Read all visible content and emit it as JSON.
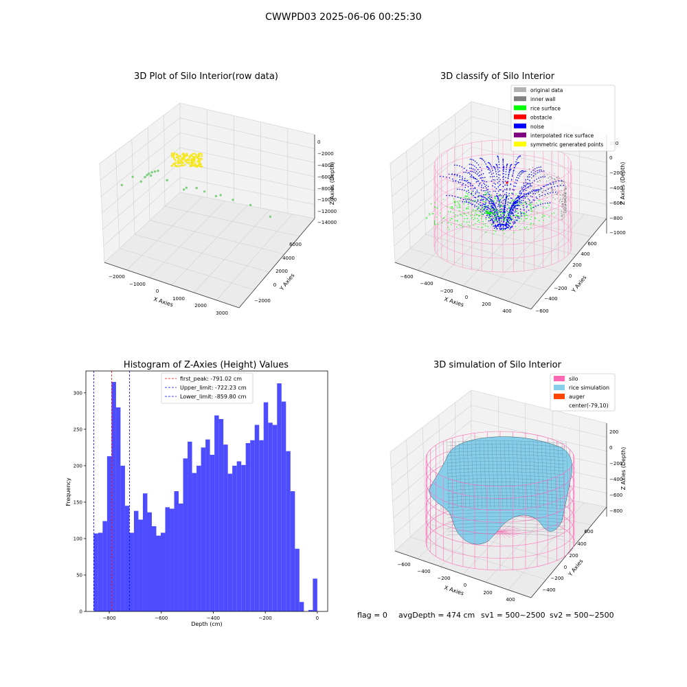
{
  "figure": {
    "suptitle": "CWWPD03 2025-06-06 00:25:30",
    "footer": {
      "flag": "flag = 0",
      "avg": "avgDepth = 474 cm",
      "sv1": "sv1 = 500~2500",
      "sv2": "sv2 = 500~2500"
    }
  },
  "chart_data": [
    {
      "type": "scatter",
      "projection": "3d",
      "title": "3D Plot of Silo Interior(row data)",
      "xlabel": "X Axies",
      "ylabel": "Y Axies",
      "zlabel": "Z Axies (Depth)",
      "xticks": [
        "−2000",
        "−1000",
        "0",
        "1000",
        "2000",
        "3000"
      ],
      "yticks": [
        "−2000",
        "0",
        "2000",
        "4000",
        "6000"
      ],
      "zticks": [
        "0",
        "−2000",
        "−4000",
        "−6000",
        "−8000",
        "−10000",
        "−12000",
        "−14000"
      ],
      "colors": {
        "cluster": "#f5e71a",
        "outliers": "#7ed07e"
      },
      "series": [
        {
          "label": "cluster",
          "x": [
            -300,
            300
          ],
          "y": [
            -300,
            300
          ],
          "z": [
            -900,
            0
          ]
        },
        {
          "label": "outliers",
          "points": [
            [
              -2100,
              -1500,
              -3000
            ],
            [
              -1800,
              -1000,
              -2000
            ],
            [
              -1500,
              -800,
              -2800
            ],
            [
              -1400,
              -600,
              -2200
            ],
            [
              -1300,
              -400,
              -1800
            ],
            [
              -1200,
              -300,
              -1600
            ],
            [
              -1100,
              -200,
              -1500
            ],
            [
              -1000,
              -100,
              -1400
            ],
            [
              -1600,
              200,
              -3500
            ],
            [
              -1500,
              400,
              -3800
            ],
            [
              -1000,
              1000,
              -5000
            ],
            [
              500,
              500,
              -3500
            ],
            [
              1000,
              1500,
              -6000
            ],
            [
              -800,
              2500,
              -9000
            ],
            [
              300,
              2000,
              -7000
            ],
            [
              800,
              2600,
              -8000
            ],
            [
              1200,
              3000,
              -9000
            ],
            [
              1800,
              3500,
              -10000
            ],
            [
              2500,
              4000,
              -12000
            ],
            [
              300,
              -200,
              -2500
            ]
          ]
        }
      ]
    },
    {
      "type": "scatter",
      "projection": "3d",
      "title": "3D classify of Silo Interior",
      "xlabel": "X Axies",
      "ylabel": "Y Axies",
      "zlabel": "Z Axies (Depth)",
      "xticks": [
        "−600",
        "−400",
        "−200",
        "0",
        "200",
        "400"
      ],
      "yticks": [
        "−600",
        "−400",
        "−200",
        "0",
        "200",
        "400",
        "600"
      ],
      "zticks": [
        "200",
        "0",
        "−200",
        "−400",
        "−600",
        "−800",
        "−1000"
      ],
      "legend_position": "top-right",
      "legend": [
        {
          "label": "original data",
          "color": "#b3b3b3"
        },
        {
          "label": "inner wall",
          "color": "#808080"
        },
        {
          "label": "rice surface",
          "color": "#00ff00"
        },
        {
          "label": "obstacle",
          "color": "#ff0000"
        },
        {
          "label": "noise",
          "color": "#0000ff"
        },
        {
          "label": "interpolated rice surface",
          "color": "#800080"
        },
        {
          "label": "symmetric generated points",
          "color": "#ffff00"
        }
      ]
    },
    {
      "type": "bar",
      "title": "Histogram of Z-Axies (Height) Values",
      "xlabel": "Depth (cm)",
      "ylabel": "Frequency",
      "xlim": [
        -890,
        40
      ],
      "ylim": [
        0,
        330
      ],
      "xticks": [
        -800,
        -600,
        -400,
        -200,
        0
      ],
      "xticklabels": [
        "−800",
        "−600",
        "−400",
        "−200",
        "0"
      ],
      "yticks": [
        0,
        50,
        100,
        150,
        200,
        250,
        300
      ],
      "yticklabels": [
        "0",
        "50",
        "100",
        "150",
        "200",
        "250",
        "300"
      ],
      "bar_color": "#4d4dff",
      "bin_edges_start": -860,
      "bin_width": 17.2,
      "values": [
        107,
        108,
        124,
        213,
        315,
        280,
        200,
        145,
        108,
        138,
        126,
        162,
        136,
        117,
        104,
        108,
        143,
        141,
        165,
        148,
        210,
        233,
        190,
        200,
        225,
        236,
        215,
        269,
        264,
        229,
        189,
        200,
        206,
        201,
        231,
        235,
        256,
        235,
        287,
        259,
        256,
        313,
        288,
        220,
        165,
        86,
        13,
        0,
        2,
        45
      ],
      "vlines": [
        {
          "x": -791.02,
          "color": "#ff0000",
          "label": "first_peak: -791.02 cm"
        },
        {
          "x": -722.23,
          "color": "#0000ff",
          "label": "Upper_limit: -722.23 cm"
        },
        {
          "x": -859.8,
          "color": "#0000ff",
          "label": "Lower_limit: -859.80 cm"
        }
      ],
      "legend_position": "top-center"
    },
    {
      "type": "area",
      "projection": "3d",
      "title": "3D simulation of Silo Interior",
      "xlabel": "X Axies",
      "ylabel": "Y Axies",
      "zlabel": "Z Axies (Depth)",
      "xticks": [
        "−600",
        "−400",
        "−200",
        "0",
        "200",
        "400"
      ],
      "yticks": [
        "−400",
        "−200",
        "0",
        "200",
        "400",
        "600"
      ],
      "zticks": [
        "200",
        "0",
        "−200",
        "−400",
        "−600",
        "−800"
      ],
      "legend_position": "top-right",
      "legend": [
        {
          "label": "silo",
          "color": "#ff69b4"
        },
        {
          "label": "rice simulation",
          "color": "#87ceeb"
        },
        {
          "label": "auger",
          "color": "#ff4500"
        },
        {
          "label": "center(-79,10)",
          "color": "#ffffff"
        }
      ]
    }
  ]
}
